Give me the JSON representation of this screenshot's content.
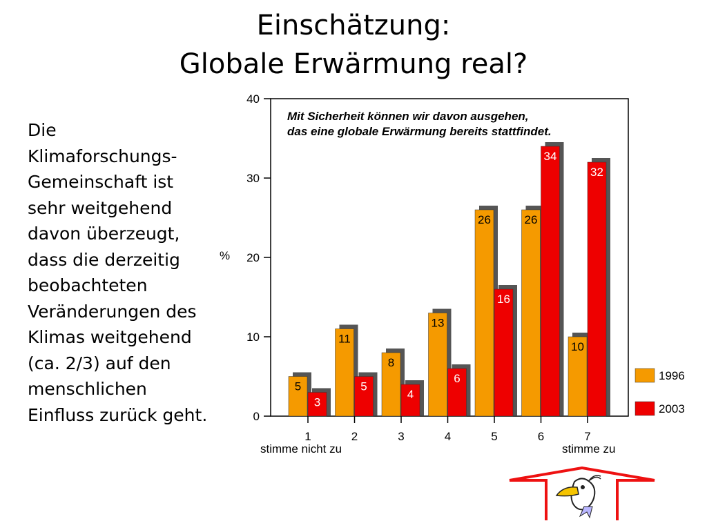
{
  "slide": {
    "title_line1": "Einschätzung:",
    "title_line2": "Globale Erwärmung real?",
    "body_lines": [
      "Die",
      "Klimaforschungs-",
      "Gemeinschaft ist",
      "sehr weitgehend",
      "davon überzeugt,",
      "dass die derzeitig",
      "beobachteten",
      "Veränderungen des",
      "Klimas weitgehend",
      "(ca. 2/3) auf den",
      "menschlichen",
      "Einfluss zurück geht."
    ]
  },
  "chart_data": {
    "type": "bar",
    "annotation_line1": "Mit Sicherheit können wir davon ausgehen,",
    "annotation_line2": "das eine globale Erwärmung bereits stattfindet.",
    "ylabel": "%",
    "ylim": [
      0,
      40
    ],
    "yticks": [
      0,
      10,
      20,
      30,
      40
    ],
    "categories": [
      "1",
      "2",
      "3",
      "4",
      "5",
      "6",
      "7"
    ],
    "xlabel_left": "stimme nicht zu",
    "xlabel_right": "stimme zu",
    "legend_position": "right",
    "series": [
      {
        "name": "1996",
        "color": "#f59a00",
        "values": [
          5,
          11,
          8,
          13,
          26,
          26,
          10
        ]
      },
      {
        "name": "2003",
        "color": "#ee0000",
        "values": [
          3,
          5,
          4,
          6,
          16,
          34,
          32
        ]
      }
    ]
  },
  "decor": {
    "arrow_color": "#ee1111",
    "icon": "bird-cartoon-icon"
  }
}
